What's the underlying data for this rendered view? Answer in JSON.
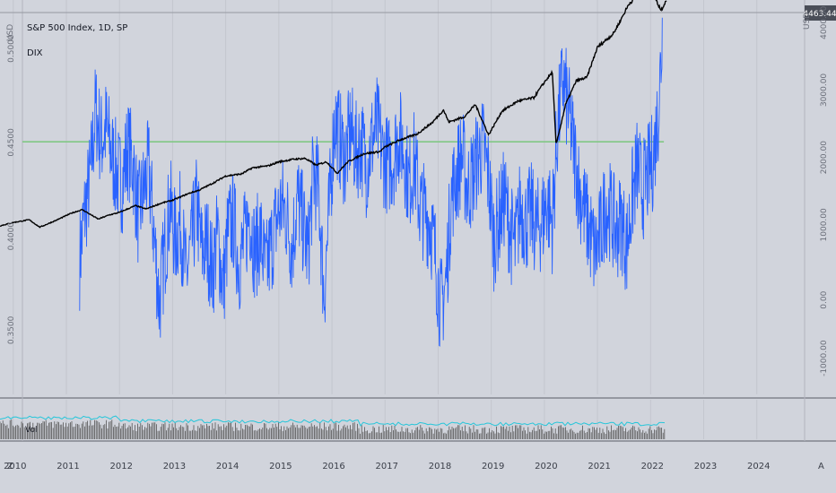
{
  "chart_data": {
    "type": "line",
    "title": "S&P 500 Index, 1D, SP",
    "left_axis_unit": "USD",
    "right_axis_unit": "USD",
    "last_price": "4463.44",
    "x_ticks": [
      "2010",
      "2011",
      "2012",
      "2013",
      "2014",
      "2015",
      "2016",
      "2017",
      "2018",
      "2019",
      "2020",
      "2021",
      "2022",
      "2023",
      "2024"
    ],
    "left_ticks": [
      "0.5000",
      "0.4500",
      "0.4000",
      "0.3500"
    ],
    "right_ticks": [
      "4000.00",
      "3000.00",
      "2000.00",
      "1000.00",
      "0.00",
      "-1000.00"
    ],
    "left_ylim": [
      0.32,
      0.53
    ],
    "right_ylim": [
      -1400,
      4450
    ],
    "xlim": [
      2009.75,
      2024.9
    ],
    "reference_line": {
      "value": 0.4545,
      "color": "#81c784"
    },
    "series": [
      {
        "name": "S&P 500 Index, 1D, SP",
        "axis": "right",
        "color": "#000000",
        "x": [
          2009.75,
          2010.0,
          2010.3,
          2010.5,
          2010.8,
          2011.1,
          2011.3,
          2011.6,
          2011.8,
          2012.0,
          2012.3,
          2012.5,
          2012.8,
          2013.0,
          2013.3,
          2013.5,
          2013.8,
          2014.0,
          2014.3,
          2014.5,
          2014.8,
          2015.0,
          2015.3,
          2015.5,
          2015.7,
          2015.9,
          2016.1,
          2016.3,
          2016.6,
          2016.9,
          2017.0,
          2017.3,
          2017.6,
          2017.9,
          2018.1,
          2018.2,
          2018.5,
          2018.7,
          2018.95,
          2019.2,
          2019.5,
          2019.8,
          2020.0,
          2020.15,
          2020.22,
          2020.4,
          2020.6,
          2020.8,
          2021.0,
          2021.3,
          2021.6,
          2021.8,
          2021.98,
          2022.1,
          2022.2,
          2022.3
        ],
        "values": [
          1100,
          1150,
          1190,
          1080,
          1180,
          1290,
          1340,
          1200,
          1260,
          1300,
          1400,
          1350,
          1440,
          1480,
          1580,
          1630,
          1750,
          1840,
          1870,
          1960,
          1990,
          2050,
          2090,
          2100,
          2000,
          2050,
          1880,
          2050,
          2170,
          2200,
          2270,
          2380,
          2460,
          2640,
          2820,
          2640,
          2720,
          2900,
          2450,
          2800,
          2950,
          3000,
          3230,
          3380,
          2300,
          2900,
          3250,
          3300,
          3750,
          3950,
          4400,
          4550,
          4780,
          4450,
          4300,
          4460
        ]
      },
      {
        "name": "DIX",
        "axis": "left",
        "color": "#2962ff",
        "x": [
          2011.25,
          2011.35,
          2011.45,
          2011.55,
          2011.65,
          2011.75,
          2011.85,
          2011.95,
          2012.05,
          2012.15,
          2012.25,
          2012.35,
          2012.45,
          2012.55,
          2012.65,
          2012.75,
          2012.85,
          2012.95,
          2013.05,
          2013.15,
          2013.25,
          2013.35,
          2013.45,
          2013.55,
          2013.65,
          2013.75,
          2013.85,
          2013.95,
          2014.05,
          2014.15,
          2014.25,
          2014.35,
          2014.45,
          2014.55,
          2014.65,
          2014.75,
          2014.85,
          2014.95,
          2015.05,
          2015.15,
          2015.25,
          2015.35,
          2015.45,
          2015.55,
          2015.65,
          2015.75,
          2015.85,
          2015.95,
          2016.05,
          2016.15,
          2016.25,
          2016.35,
          2016.45,
          2016.55,
          2016.65,
          2016.75,
          2016.85,
          2016.95,
          2017.05,
          2017.15,
          2017.25,
          2017.35,
          2017.45,
          2017.55,
          2017.65,
          2017.75,
          2017.85,
          2017.95,
          2018.05,
          2018.15,
          2018.25,
          2018.35,
          2018.45,
          2018.55,
          2018.65,
          2018.75,
          2018.85,
          2018.95,
          2019.05,
          2019.15,
          2019.25,
          2019.35,
          2019.45,
          2019.55,
          2019.65,
          2019.75,
          2019.85,
          2019.95,
          2020.05,
          2020.15,
          2020.25,
          2020.35,
          2020.45,
          2020.55,
          2020.65,
          2020.75,
          2020.85,
          2020.95,
          2021.05,
          2021.15,
          2021.25,
          2021.35,
          2021.45,
          2021.55,
          2021.65,
          2021.75,
          2021.85,
          2021.95,
          2022.05,
          2022.15,
          2022.22
        ],
        "values": [
          0.392,
          0.418,
          0.435,
          0.472,
          0.455,
          0.462,
          0.448,
          0.438,
          0.432,
          0.451,
          0.444,
          0.415,
          0.428,
          0.441,
          0.405,
          0.368,
          0.396,
          0.421,
          0.402,
          0.413,
          0.382,
          0.398,
          0.421,
          0.396,
          0.401,
          0.385,
          0.405,
          0.377,
          0.408,
          0.412,
          0.389,
          0.401,
          0.418,
          0.395,
          0.406,
          0.384,
          0.398,
          0.412,
          0.421,
          0.415,
          0.398,
          0.425,
          0.411,
          0.395,
          0.438,
          0.428,
          0.372,
          0.418,
          0.467,
          0.455,
          0.445,
          0.461,
          0.449,
          0.454,
          0.441,
          0.455,
          0.463,
          0.448,
          0.442,
          0.445,
          0.458,
          0.451,
          0.432,
          0.445,
          0.421,
          0.417,
          0.412,
          0.393,
          0.365,
          0.381,
          0.426,
          0.437,
          0.448,
          0.429,
          0.436,
          0.447,
          0.452,
          0.435,
          0.402,
          0.414,
          0.425,
          0.408,
          0.398,
          0.421,
          0.411,
          0.417,
          0.408,
          0.412,
          0.423,
          0.411,
          0.462,
          0.488,
          0.471,
          0.452,
          0.431,
          0.418,
          0.407,
          0.395,
          0.404,
          0.421,
          0.417,
          0.406,
          0.413,
          0.398,
          0.424,
          0.441,
          0.428,
          0.437,
          0.445,
          0.472,
          0.512
        ]
      }
    ],
    "volume": {
      "axis_label": "Vol",
      "line_color": "#26c6da",
      "bar_color": "#555555"
    },
    "scale_controls": {
      "left": "Z",
      "right": "A"
    },
    "grid": true,
    "legend_position": "top-left"
  }
}
